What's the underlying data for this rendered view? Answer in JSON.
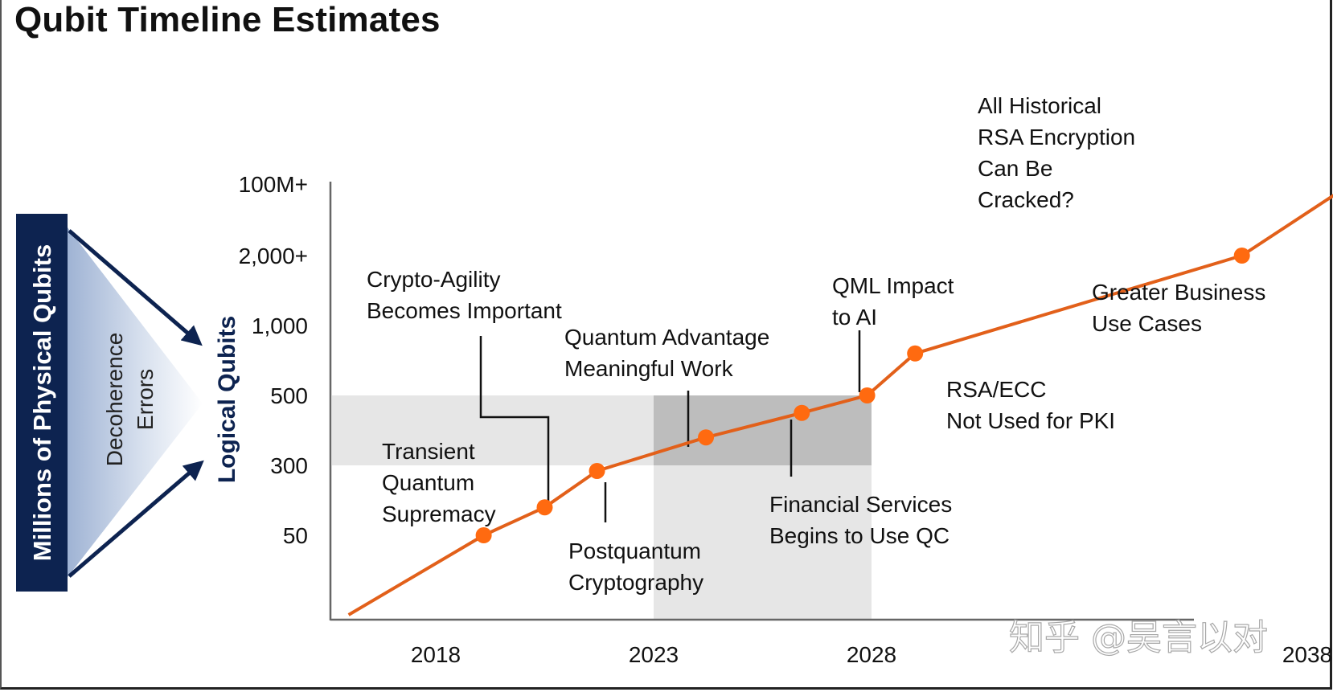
{
  "title": "Qubit Timeline Estimates",
  "colors": {
    "line": "#e2601a",
    "marker": "#ff6a10",
    "navy": "#0d2350",
    "shade_light": "#e6e6e6",
    "shade_dark": "#c9c9c9"
  },
  "side": {
    "physical_label": "Millions of Physical Qubits",
    "decoherence_label": [
      "Decoherence",
      "Errors"
    ]
  },
  "watermark": "知乎 @吴言以对",
  "chart_data": {
    "type": "line",
    "title": "Qubit Timeline Estimates",
    "xlabel": "",
    "ylabel": "Logical Qubits",
    "x_ticks": [
      "2018",
      "2023",
      "2028",
      "2038"
    ],
    "y_ticks": [
      "50",
      "300",
      "500",
      "1,000",
      "2,000+",
      "100M+"
    ],
    "y_scale": "ordinal (uneven)",
    "grid": false,
    "series": [
      {
        "points": [
          {
            "x": 2016.0,
            "y": 0
          },
          {
            "x": 2019.1,
            "y": 50
          },
          {
            "x": 2020.5,
            "y": 150
          },
          {
            "x": 2021.7,
            "y": 280
          },
          {
            "x": 2024.2,
            "y": 380
          },
          {
            "x": 2026.4,
            "y": 450
          },
          {
            "x": 2027.9,
            "y": 500
          },
          {
            "x": 2029.0,
            "y": 800
          },
          {
            "x": 2036.5,
            "y": 2000
          },
          {
            "x": 2039.0,
            "y": 100000000
          }
        ]
      }
    ],
    "shaded_regions": [
      {
        "x_from": 2016.0,
        "x_to": 2028.0,
        "y_from": 300,
        "y_to": 500
      },
      {
        "x_from": 2023.0,
        "x_to": 2028.0,
        "y_from": 0,
        "y_to": 500
      }
    ],
    "annotations": [
      {
        "lines": [
          "Transient",
          "Quantum",
          "Supremacy"
        ]
      },
      {
        "lines": [
          "Crypto-Agility",
          "Becomes Important"
        ]
      },
      {
        "lines": [
          "Postquantum",
          "Cryptography"
        ]
      },
      {
        "lines": [
          "Quantum Advantage",
          "Meaningful Work"
        ]
      },
      {
        "lines": [
          "Financial Services",
          "Begins to Use QC"
        ]
      },
      {
        "lines": [
          "QML Impact",
          "to AI"
        ]
      },
      {
        "lines": [
          "RSA/ECC",
          "Not Used for PKI"
        ]
      },
      {
        "lines": [
          "Greater Business",
          "Use Cases"
        ]
      },
      {
        "lines": [
          "All Historical",
          "RSA Encryption",
          "Can Be",
          "Cracked?"
        ]
      }
    ]
  }
}
